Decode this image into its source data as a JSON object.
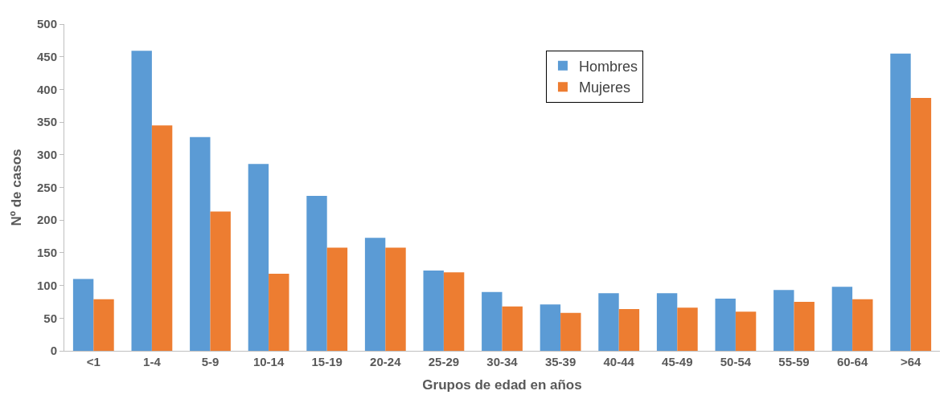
{
  "chart_data": {
    "type": "bar",
    "xlabel": "Grupos de edad en años",
    "ylabel": "Nº de casos",
    "categories": [
      "<1",
      "1-4",
      "5-9",
      "10-14",
      "15-19",
      "20-24",
      "25-29",
      "30-34",
      "35-39",
      "40-44",
      "45-49",
      "50-54",
      "55-59",
      "60-64",
      ">64"
    ],
    "series": [
      {
        "name": "Hombres",
        "color": "#5b9bd5",
        "values": [
          110,
          459,
          327,
          286,
          237,
          173,
          123,
          90,
          71,
          88,
          88,
          80,
          93,
          98,
          455
        ]
      },
      {
        "name": "Mujeres",
        "color": "#ed7d31",
        "values": [
          79,
          345,
          213,
          118,
          158,
          158,
          120,
          68,
          58,
          64,
          66,
          60,
          75,
          79,
          387
        ]
      }
    ],
    "ylim": [
      0,
      500
    ],
    "yticks": [
      0,
      50,
      100,
      150,
      200,
      250,
      300,
      350,
      400,
      450,
      500
    ],
    "grid": false,
    "legend": "top"
  }
}
